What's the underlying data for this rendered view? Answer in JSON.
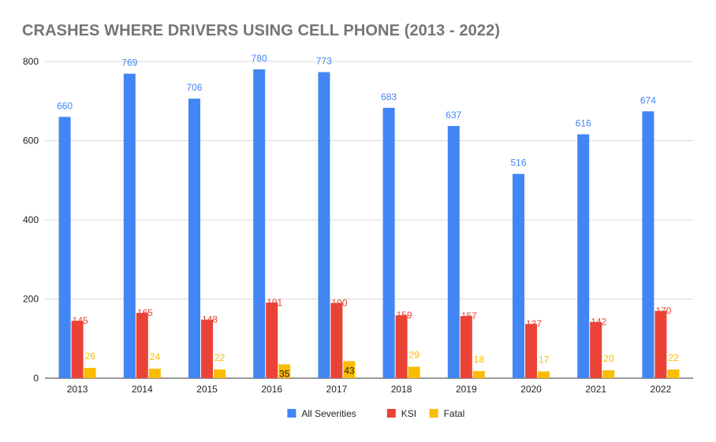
{
  "chart_data": {
    "type": "bar",
    "title": "CRASHES WHERE DRIVERS USING CELL PHONE (2013 - 2022)",
    "xlabel": "",
    "ylabel": "",
    "categories": [
      "2013",
      "2014",
      "2015",
      "2016",
      "2017",
      "2018",
      "2019",
      "2020",
      "2021",
      "2022"
    ],
    "series": [
      {
        "name": "All Severities",
        "color": "#4285f4",
        "label_color": "#4285f4",
        "values": [
          660,
          769,
          706,
          780,
          773,
          683,
          637,
          516,
          616,
          674
        ]
      },
      {
        "name": "KSI",
        "color": "#ea4335",
        "label_color": "#ea4335",
        "values": [
          145,
          165,
          148,
          191,
          190,
          159,
          157,
          137,
          142,
          170
        ]
      },
      {
        "name": "Fatal",
        "color": "#fbbc04",
        "label_color": "#fbbc04",
        "values": [
          26,
          24,
          22,
          35,
          43,
          29,
          18,
          17,
          20,
          22
        ]
      }
    ],
    "ylim": [
      0,
      800
    ],
    "yticks": [
      0,
      200,
      400,
      600,
      800
    ],
    "grid": true,
    "legend": "bottom"
  }
}
